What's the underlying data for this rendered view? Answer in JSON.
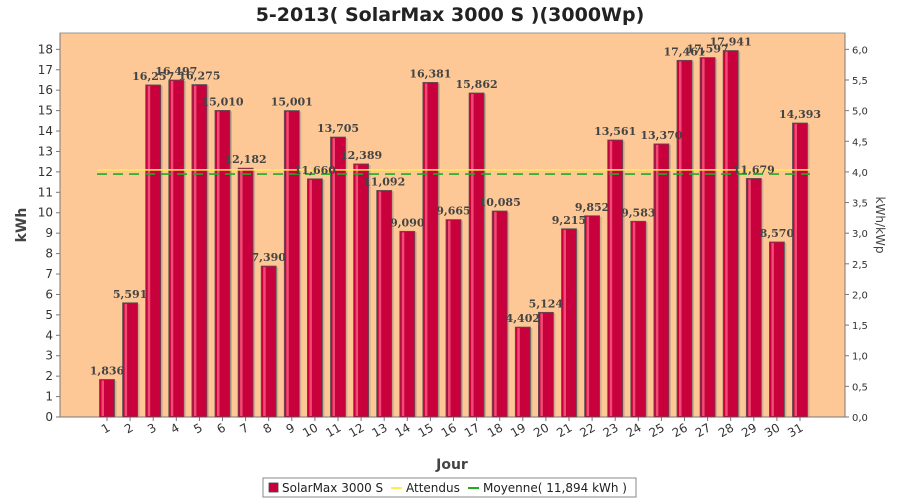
{
  "title": "5-2013( SolarMax 3000 S )(3000Wp)",
  "chart_data": {
    "type": "bar",
    "title": "5-2013( SolarMax 3000 S )(3000Wp)",
    "xlabel": "Jour",
    "ylabel": "kWh",
    "y2label": "kWh/kWp",
    "ylim": [
      0,
      18.8
    ],
    "y2lim": [
      0,
      6.267
    ],
    "yticks": [
      0,
      1,
      2,
      3,
      4,
      5,
      6,
      7,
      8,
      9,
      10,
      11,
      12,
      13,
      14,
      15,
      16,
      17,
      18
    ],
    "y2ticks": [
      "0,0",
      "0,5",
      "1,0",
      "1,5",
      "2,0",
      "2,5",
      "3,0",
      "3,5",
      "4,0",
      "4,5",
      "5,0",
      "5,5",
      "6,0"
    ],
    "categories": [
      "1",
      "2",
      "3",
      "4",
      "5",
      "6",
      "7",
      "8",
      "9",
      "10",
      "11",
      "12",
      "13",
      "14",
      "15",
      "16",
      "17",
      "18",
      "19",
      "20",
      "21",
      "22",
      "23",
      "24",
      "25",
      "26",
      "27",
      "28",
      "29",
      "30",
      "31"
    ],
    "series": [
      {
        "name": "SolarMax 3000 S",
        "type": "bar",
        "color": "#c8003c",
        "values": [
          1.836,
          5.591,
          16.257,
          16.497,
          16.275,
          15.01,
          12.182,
          7.39,
          15.001,
          11.66,
          13.705,
          12.389,
          11.092,
          9.09,
          16.381,
          9.665,
          15.862,
          10.085,
          4.402,
          5.124,
          9.215,
          9.852,
          13.561,
          9.583,
          13.37,
          17.461,
          17.597,
          17.941,
          11.679,
          8.57,
          14.393
        ],
        "labels": [
          "1,836",
          "5,591",
          "16,257",
          "16,497",
          "16,275",
          "15,010",
          "12,182",
          "7,390",
          "15,001",
          "11,660",
          "13,705",
          "12,389",
          "11,092",
          "9,090",
          "16,381",
          "9,665",
          "15,862",
          "10,085",
          "4,402",
          "5,124",
          "9,215",
          "9,852",
          "13,561",
          "9,583",
          "13,370",
          "17,461",
          "17,597",
          "17,941",
          "11,679",
          "8,570",
          "14,393"
        ]
      },
      {
        "name": "Attendus",
        "type": "line",
        "color": "#ffee44",
        "value": 12.1
      },
      {
        "name": "Moyenne( 11,894 kWh )",
        "type": "line",
        "color": "#22aa22",
        "value": 11.894
      }
    ],
    "grid": false,
    "legend": "bottom",
    "plot_background": "#fdc896"
  }
}
